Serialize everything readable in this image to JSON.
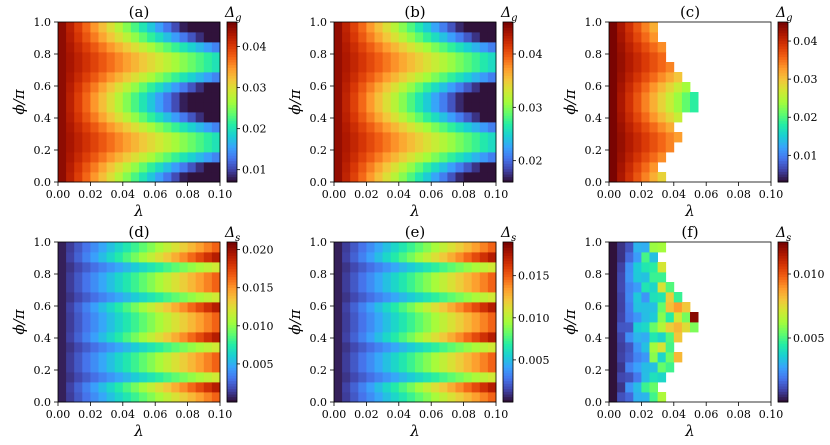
{
  "figure": {
    "colormap": [
      "#30123b",
      "#4145ab",
      "#4675ed",
      "#39a2fc",
      "#1bcfd4",
      "#24eca6",
      "#61fc6c",
      "#a4fc3b",
      "#d1e834",
      "#f3c63a",
      "#fe9b2d",
      "#f36315",
      "#d93806",
      "#b11901",
      "#7a0402"
    ]
  },
  "chart_data": [
    {
      "id": "a",
      "type": "heatmap",
      "title": "(a)",
      "quantity": "g",
      "xlabel": "λ",
      "ylabel": "ϕ/π",
      "xlim": [
        0,
        0.1
      ],
      "ylim": [
        0,
        1
      ],
      "xticks": [
        "0.00",
        "0.02",
        "0.04",
        "0.06",
        "0.08",
        "0.10"
      ],
      "yticks": [
        "0.0",
        "0.2",
        "0.4",
        "0.6",
        "0.8",
        "1.0"
      ],
      "colorbar": {
        "label": "Δ",
        "subscript": "g",
        "range": [
          0.007,
          0.046
        ],
        "ticks": [
          "0.01",
          "0.02",
          "0.03",
          "0.04"
        ]
      },
      "lambda_values": [
        0,
        0.005,
        0.01,
        0.015,
        0.02,
        0.025,
        0.03,
        0.035,
        0.04,
        0.045,
        0.05,
        0.055,
        0.06,
        0.065,
        0.07,
        0.075,
        0.08,
        0.085,
        0.09,
        0.095
      ],
      "phi_values": [
        0,
        0.0625,
        0.125,
        0.1875,
        0.25,
        0.3125,
        0.375,
        0.4375,
        0.5,
        0.5625,
        0.625,
        0.6875,
        0.75,
        0.8125,
        0.875,
        0.9375
      ],
      "model": {
        "kind": "gap",
        "start": 0.045,
        "decay": 0.028,
        "modulation": 0.006,
        "floor": 0.007,
        "cutoff": null
      }
    },
    {
      "id": "b",
      "type": "heatmap",
      "title": "(b)",
      "quantity": "g",
      "xlabel": "λ",
      "ylabel": "ϕ/π",
      "xlim": [
        0,
        0.1
      ],
      "ylim": [
        0,
        1
      ],
      "xticks": [
        "0.00",
        "0.02",
        "0.04",
        "0.06",
        "0.08",
        "0.10"
      ],
      "yticks": [
        "0.0",
        "0.2",
        "0.4",
        "0.6",
        "0.8",
        "1.0"
      ],
      "colorbar": {
        "label": "Δ",
        "subscript": "g",
        "range": [
          0.016,
          0.046
        ],
        "ticks": [
          "0.02",
          "0.03",
          "0.04"
        ]
      },
      "lambda_values": [
        0,
        0.005,
        0.01,
        0.015,
        0.02,
        0.025,
        0.03,
        0.035,
        0.04,
        0.045,
        0.05,
        0.055,
        0.06,
        0.065,
        0.07,
        0.075,
        0.08,
        0.085,
        0.09,
        0.095
      ],
      "phi_values": [
        0,
        0.0625,
        0.125,
        0.1875,
        0.25,
        0.3125,
        0.375,
        0.4375,
        0.5,
        0.5625,
        0.625,
        0.6875,
        0.75,
        0.8125,
        0.875,
        0.9375
      ],
      "model": {
        "kind": "gap",
        "start": 0.045,
        "decay": 0.022,
        "modulation": 0.004,
        "floor": 0.016,
        "cutoff": null
      }
    },
    {
      "id": "c",
      "type": "heatmap",
      "title": "(c)",
      "quantity": "g",
      "xlabel": "λ",
      "ylabel": "ϕ/π",
      "xlim": [
        0,
        0.1
      ],
      "ylim": [
        0,
        1
      ],
      "xticks": [
        "0.00",
        "0.02",
        "0.04",
        "0.06",
        "0.08",
        "0.10"
      ],
      "yticks": [
        "0.0",
        "0.2",
        "0.4",
        "0.6",
        "0.8",
        "1.0"
      ],
      "colorbar": {
        "label": "Δ",
        "subscript": "g",
        "range": [
          0.003,
          0.045
        ],
        "ticks": [
          "0.01",
          "0.02",
          "0.03",
          "0.04"
        ]
      },
      "lambda_values": [
        0,
        0.005,
        0.01,
        0.015,
        0.02,
        0.025,
        0.03,
        0.035,
        0.04,
        0.045,
        0.05,
        0.055,
        0.06,
        0.065,
        0.07,
        0.075,
        0.08,
        0.085,
        0.09,
        0.095
      ],
      "phi_values": [
        0,
        0.0625,
        0.125,
        0.1875,
        0.25,
        0.3125,
        0.375,
        0.4375,
        0.5,
        0.5625,
        0.625,
        0.6875,
        0.75,
        0.8125,
        0.875,
        0.9375
      ],
      "model": {
        "kind": "gap",
        "start": 0.045,
        "decay": 0.04,
        "modulation": 0.005,
        "floor": 0.003,
        "cutoff": [
          0.035,
          0.03,
          0.035,
          0.04,
          0.045,
          0.04,
          0.045,
          0.055,
          0.055,
          0.05,
          0.045,
          0.04,
          0.035,
          0.035,
          0.03,
          0.03
        ]
      }
    },
    {
      "id": "d",
      "type": "heatmap",
      "title": "(d)",
      "quantity": "s",
      "xlabel": "λ",
      "ylabel": "ϕ/π",
      "xlim": [
        0,
        0.1
      ],
      "ylim": [
        0,
        1
      ],
      "xticks": [
        "0.00",
        "0.02",
        "0.04",
        "0.06",
        "0.08",
        "0.10"
      ],
      "yticks": [
        "0.0",
        "0.2",
        "0.4",
        "0.6",
        "0.8",
        "1.0"
      ],
      "colorbar": {
        "label": "Δ",
        "subscript": "s",
        "range": [
          0.0,
          0.021
        ],
        "ticks": [
          "0.005",
          "0.010",
          "0.015",
          "0.020"
        ]
      },
      "lambda_values": [
        0,
        0.005,
        0.01,
        0.015,
        0.02,
        0.025,
        0.03,
        0.035,
        0.04,
        0.045,
        0.05,
        0.055,
        0.06,
        0.065,
        0.07,
        0.075,
        0.08,
        0.085,
        0.09,
        0.095
      ],
      "phi_values": [
        0,
        0.0625,
        0.125,
        0.1875,
        0.25,
        0.3125,
        0.375,
        0.4375,
        0.5,
        0.5625,
        0.625,
        0.6875,
        0.75,
        0.8125,
        0.875,
        0.9375
      ],
      "model": {
        "kind": "split",
        "scale": 0.021,
        "low_rows": [
          2,
          5,
          10,
          13
        ],
        "cutoff": null
      }
    },
    {
      "id": "e",
      "type": "heatmap",
      "title": "(e)",
      "quantity": "s",
      "xlabel": "λ",
      "ylabel": "ϕ/π",
      "xlim": [
        0,
        0.1
      ],
      "ylim": [
        0,
        1
      ],
      "xticks": [
        "0.00",
        "0.02",
        "0.04",
        "0.06",
        "0.08",
        "0.10"
      ],
      "yticks": [
        "0.0",
        "0.2",
        "0.4",
        "0.6",
        "0.8",
        "1.0"
      ],
      "colorbar": {
        "label": "Δ",
        "subscript": "s",
        "range": [
          0.0,
          0.019
        ],
        "ticks": [
          "0.005",
          "0.010",
          "0.015"
        ]
      },
      "lambda_values": [
        0,
        0.005,
        0.01,
        0.015,
        0.02,
        0.025,
        0.03,
        0.035,
        0.04,
        0.045,
        0.05,
        0.055,
        0.06,
        0.065,
        0.07,
        0.075,
        0.08,
        0.085,
        0.09,
        0.095
      ],
      "phi_values": [
        0,
        0.0625,
        0.125,
        0.1875,
        0.25,
        0.3125,
        0.375,
        0.4375,
        0.5,
        0.5625,
        0.625,
        0.6875,
        0.75,
        0.8125,
        0.875,
        0.9375
      ],
      "model": {
        "kind": "split",
        "scale": 0.019,
        "low_rows": [
          2,
          5,
          10,
          13
        ],
        "cutoff": null
      }
    },
    {
      "id": "f",
      "type": "heatmap",
      "title": "(f)",
      "quantity": "s",
      "xlabel": "λ",
      "ylabel": "ϕ/π",
      "xlim": [
        0,
        0.1
      ],
      "ylim": [
        0,
        1
      ],
      "xticks": [
        "0.00",
        "0.02",
        "0.04",
        "0.06",
        "0.08",
        "0.10"
      ],
      "yticks": [
        "0.0",
        "0.2",
        "0.4",
        "0.6",
        "0.8",
        "1.0"
      ],
      "colorbar": {
        "label": "Δ",
        "subscript": "s",
        "range": [
          0.0,
          0.0125
        ],
        "ticks": [
          "0.005",
          "0.010"
        ]
      },
      "lambda_values": [
        0,
        0.005,
        0.01,
        0.015,
        0.02,
        0.025,
        0.03,
        0.035,
        0.04,
        0.045,
        0.05,
        0.055,
        0.06,
        0.065,
        0.07,
        0.075,
        0.08,
        0.085,
        0.09,
        0.095
      ],
      "phi_values": [
        0,
        0.0625,
        0.125,
        0.1875,
        0.25,
        0.3125,
        0.375,
        0.4375,
        0.5,
        0.5625,
        0.625,
        0.6875,
        0.75,
        0.8125,
        0.875,
        0.9375
      ],
      "model": {
        "kind": "split-sparse",
        "scale": 0.0125,
        "cutoff": [
          0.035,
          0.03,
          0.035,
          0.04,
          0.045,
          0.04,
          0.045,
          0.055,
          0.055,
          0.05,
          0.045,
          0.04,
          0.035,
          0.035,
          0.03,
          0.035
        ]
      }
    }
  ]
}
